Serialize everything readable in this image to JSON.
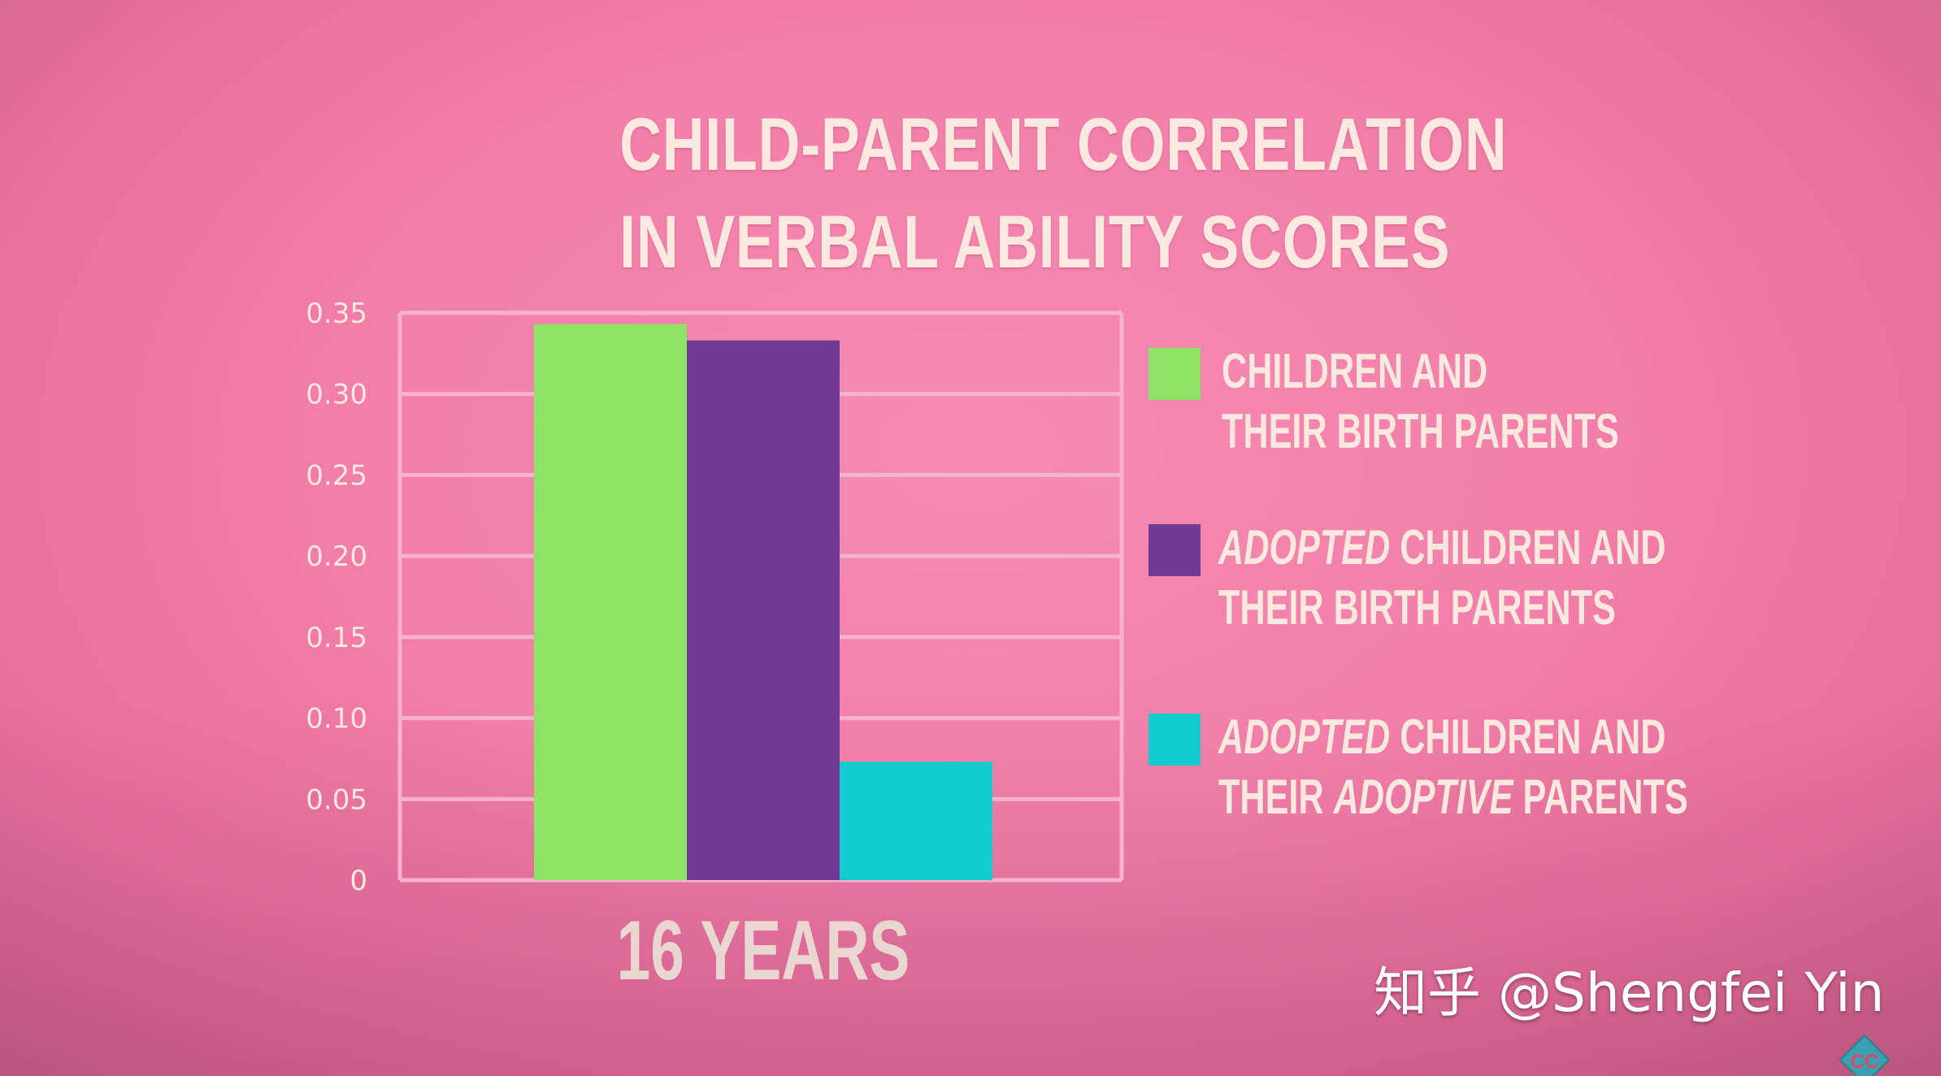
{
  "chart_data": {
    "type": "bar",
    "title_lines": [
      "CHILD-PARENT CORRELATION",
      "IN VERBAL ABILITY SCORES"
    ],
    "categories": [
      "16 YEARS"
    ],
    "series": [
      {
        "name": "CHILDREN AND THEIR BIRTH PARENTS",
        "values": [
          0.343
        ],
        "color": "#8ee266"
      },
      {
        "name": "ADOPTED CHILDREN AND THEIR BIRTH PARENTS",
        "values": [
          0.333
        ],
        "color": "#6f3b94"
      },
      {
        "name": "ADOPTED CHILDREN AND THEIR ADOPTIVE PARENTS",
        "values": [
          0.073
        ],
        "color": "#12cccf"
      }
    ],
    "ylim": [
      0,
      0.35
    ],
    "y_ticks": [
      "0",
      "0.05",
      "0.10",
      "0.15",
      "0.20",
      "0.25",
      "0.30",
      "0.35"
    ],
    "y_tick_values": [
      0,
      0.05,
      0.1,
      0.15,
      0.2,
      0.25,
      0.3,
      0.35
    ],
    "grid": true,
    "legend_position": "right",
    "xlabel": "",
    "ylabel": ""
  },
  "legend": {
    "item1": {
      "line1": "CHILDREN AND",
      "line2": "THEIR BIRTH PARENTS"
    },
    "item2": {
      "em": "ADOPTED",
      "rest": " CHILDREN AND",
      "line2": "THEIR BIRTH PARENTS"
    },
    "item3": {
      "em": "ADOPTED",
      "rest": " CHILDREN AND",
      "line2_pre": "THEIR ",
      "line2_em": "ADOPTIVE",
      "line2_post": " PARENTS"
    }
  },
  "watermark": "知乎 @Shengfei Yin",
  "colors": {
    "background": "#f27fa9",
    "text": "#fbe9df",
    "grid": "#f7b3cb"
  },
  "logo": {
    "icon": "crash-course-logo-icon",
    "text": "CC"
  }
}
